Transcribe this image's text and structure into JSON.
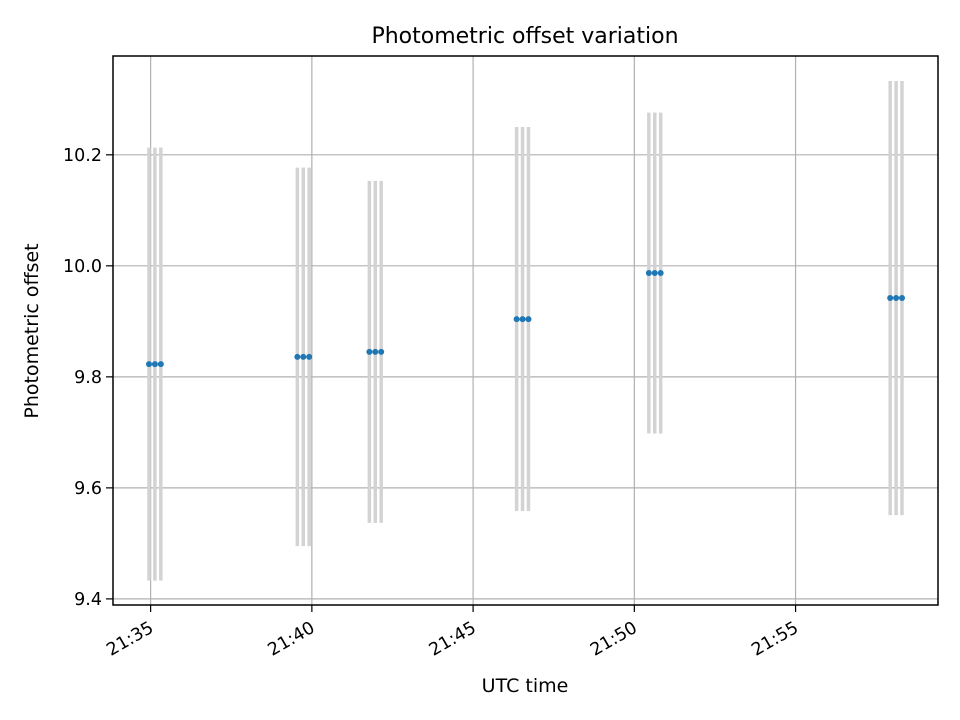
{
  "chart_data": {
    "type": "scatter",
    "title": "Photometric offset variation",
    "xlabel": "UTC time",
    "ylabel": "Photometric offset",
    "x_ticks": [
      "21:35",
      "21:40",
      "21:45",
      "21:50",
      "21:55"
    ],
    "y_ticks": [
      "9.4",
      "9.6",
      "9.8",
      "10.0",
      "10.2"
    ],
    "xlim": [
      "21:33:50",
      "21:59:25"
    ],
    "ylim": [
      9.389,
      10.378
    ],
    "grid": true,
    "colors": {
      "point": "#1f77b4",
      "errorbar": "#d3d3d3",
      "grid": "#b0b0b0"
    },
    "points": [
      {
        "time": "21:34:57",
        "y": 9.823,
        "yerr": 0.39
      },
      {
        "time": "21:35:08",
        "y": 9.823,
        "yerr": 0.39
      },
      {
        "time": "21:35:19",
        "y": 9.823,
        "yerr": 0.39
      },
      {
        "time": "21:39:33",
        "y": 9.836,
        "yerr": 0.341
      },
      {
        "time": "21:39:44",
        "y": 9.836,
        "yerr": 0.341
      },
      {
        "time": "21:39:55",
        "y": 9.836,
        "yerr": 0.341
      },
      {
        "time": "21:41:47",
        "y": 9.845,
        "yerr": 0.308
      },
      {
        "time": "21:41:58",
        "y": 9.845,
        "yerr": 0.308
      },
      {
        "time": "21:42:09",
        "y": 9.845,
        "yerr": 0.308
      },
      {
        "time": "21:46:21",
        "y": 9.904,
        "yerr": 0.346
      },
      {
        "time": "21:46:32",
        "y": 9.904,
        "yerr": 0.346
      },
      {
        "time": "21:46:43",
        "y": 9.904,
        "yerr": 0.346
      },
      {
        "time": "21:50:27",
        "y": 9.987,
        "yerr": 0.289
      },
      {
        "time": "21:50:38",
        "y": 9.987,
        "yerr": 0.289
      },
      {
        "time": "21:50:49",
        "y": 9.987,
        "yerr": 0.289
      },
      {
        "time": "21:57:56",
        "y": 9.942,
        "yerr": 0.391
      },
      {
        "time": "21:58:07",
        "y": 9.942,
        "yerr": 0.391
      },
      {
        "time": "21:58:18",
        "y": 9.942,
        "yerr": 0.391
      }
    ]
  }
}
